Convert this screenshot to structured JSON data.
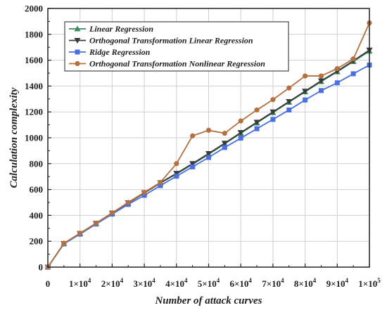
{
  "chart_data": {
    "type": "line",
    "xlabel": "Number of attack curves",
    "ylabel": "Calculation complexity",
    "xlim": [
      0,
      100000
    ],
    "ylim": [
      0,
      2000
    ],
    "x_ticks": [
      0,
      10000,
      20000,
      30000,
      40000,
      50000,
      60000,
      70000,
      80000,
      90000,
      100000
    ],
    "x_tick_labels": [
      {
        "base": "0",
        "exp": ""
      },
      {
        "base": "1×10",
        "exp": "4"
      },
      {
        "base": "2×10",
        "exp": "4"
      },
      {
        "base": "3×10",
        "exp": "4"
      },
      {
        "base": "4×10",
        "exp": "4"
      },
      {
        "base": "5×10",
        "exp": "4"
      },
      {
        "base": "6×10",
        "exp": "4"
      },
      {
        "base": "7×10",
        "exp": "4"
      },
      {
        "base": "8×10",
        "exp": "4"
      },
      {
        "base": "9×10",
        "exp": "4"
      },
      {
        "base": "1×10",
        "exp": "5"
      }
    ],
    "y_ticks": [
      0,
      200,
      400,
      600,
      800,
      1000,
      1200,
      1400,
      1600,
      1800,
      2000
    ],
    "y_tick_labels": [
      "0",
      "200",
      "400",
      "600",
      "800",
      "1000",
      "1200",
      "1400",
      "1600",
      "1800",
      "2000"
    ],
    "grid": true,
    "legend_position": "top-left",
    "x": [
      0,
      5000,
      10000,
      15000,
      20000,
      25000,
      30000,
      35000,
      40000,
      45000,
      50000,
      55000,
      60000,
      65000,
      70000,
      75000,
      80000,
      85000,
      90000,
      95000,
      100000
    ],
    "series": [
      {
        "name": "Linear Regression",
        "marker": "triangle-up",
        "color": "#3a8a5c",
        "values": [
          0,
          182,
          258,
          337,
          417,
          495,
          573,
          650,
          720,
          795,
          872,
          953,
          1035,
          1115,
          1195,
          1275,
          1355,
          1435,
          1510,
          1590,
          1670
        ]
      },
      {
        "name": "Orthogonal Transformation Linear Regression",
        "marker": "triangle-down",
        "color": "#3a3a3a",
        "values": [
          0,
          182,
          260,
          338,
          418,
          497,
          575,
          652,
          725,
          800,
          878,
          958,
          1040,
          1120,
          1200,
          1280,
          1360,
          1440,
          1515,
          1595,
          1678
        ]
      },
      {
        "name": "Ridge Regression",
        "marker": "square",
        "color": "#4a6fe0",
        "values": [
          0,
          180,
          255,
          333,
          410,
          485,
          555,
          630,
          703,
          775,
          848,
          925,
          997,
          1070,
          1142,
          1215,
          1292,
          1365,
          1425,
          1495,
          1562
        ]
      },
      {
        "name": "Orthogonal Transformation Nonlinear Regression",
        "marker": "circle",
        "color": "#b5703f",
        "values": [
          0,
          185,
          262,
          340,
          420,
          500,
          578,
          655,
          800,
          1015,
          1058,
          1035,
          1130,
          1215,
          1295,
          1385,
          1478,
          1478,
          1535,
          1610,
          1888
        ]
      }
    ]
  }
}
